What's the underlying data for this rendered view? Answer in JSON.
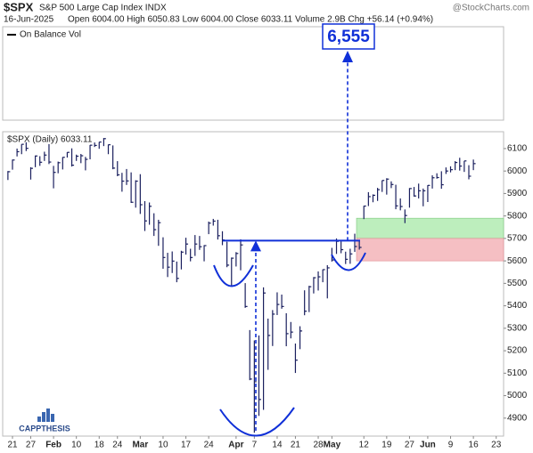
{
  "chart_data": {
    "type": "ohlc",
    "symbol": "$SPX",
    "name": "S&P 500 Large Cap Index INDX",
    "source": "@StockCharts.com",
    "date": "16-Jun-2025",
    "quote": "Open 6004.00  High 6050.83  Low 6004.00  Close 6033.11  Volume 2.9B  Chg +56.14 (+0.94%)",
    "indicator": "On Balance Vol",
    "legend": "$SPX (Daily) 6033.11",
    "target": "6,555",
    "brand": "CAPPTHESIS",
    "color": "#1a1f5e",
    "categories": [
      null,
      "21",
      null,
      null,
      null,
      "27",
      null,
      null,
      null,
      null,
      "Feb",
      null,
      null,
      null,
      null,
      "10",
      null,
      null,
      null,
      null,
      "18",
      null,
      null,
      null,
      "24",
      null,
      null,
      null,
      null,
      "Mar",
      null,
      null,
      null,
      null,
      "10",
      null,
      null,
      null,
      null,
      "17",
      null,
      null,
      null,
      null,
      "24",
      null,
      null,
      null,
      null,
      null,
      "Apr",
      null,
      null,
      null,
      "7",
      null,
      null,
      null,
      null,
      "14",
      null,
      null,
      null,
      "21",
      null,
      null,
      null,
      null,
      "28",
      null,
      null,
      "May",
      null,
      null,
      null,
      null,
      null,
      null,
      "12",
      null,
      null,
      null,
      null,
      "19",
      null,
      null,
      null,
      null,
      "27",
      null,
      null,
      null,
      "Jun",
      null,
      null,
      null,
      null,
      "9",
      null,
      null,
      null,
      null,
      "16",
      null,
      null,
      null,
      null,
      "23"
    ],
    "series": [
      {
        "name": "$SPX",
        "high": [
          6000,
          6051,
          6100,
          6119,
          6128,
          6017,
          6069,
          6066,
          6086,
          6120,
          6023,
          6042,
          6062,
          6084,
          6101,
          6073,
          6076,
          6063,
          6116,
          6127,
          6129,
          6147,
          6118,
          6114,
          6044,
          5992,
          6009,
          5994,
          5959,
          5986,
          5866,
          5860,
          5812,
          5783,
          5705,
          5636,
          5642,
          5597,
          5645,
          5703,
          5654,
          5715,
          5711,
          5670,
          5775,
          5787,
          5783,
          5732,
          5685,
          5615,
          5639,
          5696,
          5501,
          5292,
          5246,
          5268,
          5482,
          5343,
          5381,
          5460,
          5450,
          5367,
          5328,
          5232,
          5309,
          5469,
          5489,
          5528,
          5553,
          5562,
          5581,
          5658,
          5700,
          5687,
          5641,
          5654,
          5721,
          5691,
          5845,
          5906,
          5896,
          5925,
          5958,
          5968,
          5954,
          5939,
          5878,
          5829,
          5924,
          5929,
          5944,
          5922,
          5937,
          5981,
          5990,
          5999,
          6016,
          6021,
          6044,
          6059,
          6045,
          6026,
          6051,
          null,
          null,
          null,
          null,
          null
        ],
        "low": [
          5960,
          6006,
          6065,
          6075,
          6089,
          5962,
          6017,
          6023,
          6045,
          6031,
          5923,
          5990,
          6007,
          6060,
          6020,
          6045,
          6035,
          6003,
          6052,
          6107,
          6099,
          6111,
          6075,
          6008,
          5977,
          5908,
          5938,
          5858,
          5837,
          5809,
          5733,
          5761,
          5711,
          5667,
          5565,
          5528,
          5546,
          5505,
          5562,
          5628,
          5598,
          5622,
          5649,
          5598,
          5719,
          5757,
          5695,
          5670,
          5572,
          5489,
          5575,
          5558,
          5391,
          5069,
          4835,
          4910,
          4937,
          5115,
          5221,
          5359,
          5387,
          5220,
          5255,
          5101,
          5207,
          5358,
          5372,
          5455,
          5468,
          5505,
          5433,
          5597,
          5631,
          5634,
          5586,
          5587,
          5640,
          5650,
          5786,
          5844,
          5861,
          5867,
          5907,
          5895,
          5924,
          5830,
          5825,
          5768,
          5837,
          5886,
          5878,
          5843,
          5862,
          5922,
          5966,
          5921,
          5987,
          5994,
          6004,
          6002,
          5996,
          5963,
          6004,
          null,
          null,
          null,
          null,
          null
        ],
        "close": [
          5997,
          6049,
          6086,
          6119,
          6101,
          6012,
          6067,
          6039,
          6071,
          6040,
          5994,
          6037,
          6061,
          6083,
          6026,
          6066,
          6068,
          6052,
          6115,
          6114,
          6129,
          6144,
          6117,
          6013,
          5983,
          5955,
          5956,
          5861,
          5955,
          5850,
          5778,
          5843,
          5739,
          5770,
          5615,
          5572,
          5599,
          5522,
          5639,
          5675,
          5615,
          5675,
          5663,
          5668,
          5768,
          5777,
          5712,
          5693,
          5581,
          5612,
          5633,
          5671,
          5397,
          5074,
          5062,
          4983,
          5457,
          5268,
          5363,
          5406,
          5397,
          5276,
          5283,
          5158,
          5288,
          5376,
          5485,
          5525,
          5529,
          5561,
          5569,
          5604,
          5687,
          5650,
          5607,
          5631,
          5664,
          5660,
          5844,
          5886,
          5892,
          5917,
          5958,
          5964,
          5940,
          5845,
          5842,
          5802,
          5922,
          5889,
          5912,
          5912,
          5936,
          5970,
          5971,
          5939,
          6000,
          6006,
          6038,
          6022,
          6045,
          5977,
          6033,
          null,
          null,
          null,
          null,
          null
        ]
      }
    ],
    "neckline": 5690,
    "zones": [
      {
        "low": 5700,
        "high": 5790,
        "color": "#bdeebd"
      },
      {
        "low": 5600,
        "high": 5700,
        "color": "#f5bfc3"
      }
    ],
    "ylim": [
      4820,
      6175
    ],
    "yticks": [
      4900,
      5000,
      5100,
      5200,
      5300,
      5400,
      5500,
      5600,
      5700,
      5800,
      5900,
      6000,
      6100
    ]
  }
}
